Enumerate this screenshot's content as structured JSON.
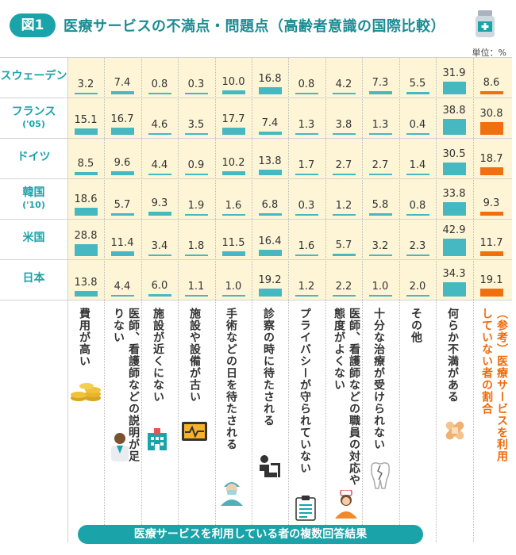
{
  "header": {
    "badge": "図1",
    "title": "医療サービスの不満点・問題点（高齢者意識の国際比較）",
    "unit": "単位：%"
  },
  "footer": {
    "label": "医療サービスを利用している者の複数回答結果"
  },
  "colors": {
    "teal": "#1aa3a9",
    "bar": "#45b8c2",
    "orange": "#f0700f",
    "bg": "#fdf5d6"
  },
  "chart_data": {
    "type": "table",
    "title": "医療サービスの不満点・問題点（高齢者意識の国際比較）",
    "unit": "単位：%",
    "categories": [
      "費用が高い",
      "医師、看護師などの説明が足りない",
      "施設が近くにない",
      "施設や設備が古い",
      "手術などの日を待たされる",
      "診察の時に待たされる",
      "プライバシーが守られていない",
      "医師、看護師などの職員の対応や態度がよくない",
      "十分な治療が受けられない",
      "その他",
      "何らか不満がある",
      "（参考）医療サービスを利用していない者の割合"
    ],
    "series": [
      {
        "name": "スウェーデン",
        "note": "",
        "values": [
          3.2,
          7.4,
          0.8,
          0.3,
          10.0,
          16.8,
          0.8,
          4.2,
          7.3,
          5.5,
          31.9,
          8.6
        ]
      },
      {
        "name": "フランス",
        "note": "('05)",
        "values": [
          15.1,
          16.7,
          4.6,
          3.5,
          17.7,
          7.4,
          1.3,
          3.8,
          1.3,
          0.4,
          38.8,
          30.8
        ]
      },
      {
        "name": "ドイツ",
        "note": "",
        "values": [
          8.5,
          9.6,
          4.4,
          0.9,
          10.2,
          13.8,
          1.7,
          2.7,
          2.7,
          1.4,
          30.5,
          18.7
        ]
      },
      {
        "name": "韓国",
        "note": "('10)",
        "values": [
          18.6,
          5.7,
          9.3,
          1.9,
          1.6,
          6.8,
          0.3,
          1.2,
          5.8,
          0.8,
          33.8,
          9.3
        ]
      },
      {
        "name": "米国",
        "note": "",
        "values": [
          28.8,
          11.4,
          3.4,
          1.8,
          11.5,
          16.4,
          1.6,
          5.7,
          3.2,
          2.3,
          42.9,
          11.7
        ]
      },
      {
        "name": "日本",
        "note": "",
        "values": [
          13.8,
          4.4,
          6.0,
          1.1,
          1.0,
          19.2,
          1.2,
          2.2,
          1.0,
          2.0,
          34.3,
          19.1
        ]
      }
    ]
  },
  "icons": [
    "coins-icon",
    "doctor-icon",
    "hospital-icon",
    "monitor-icon",
    "surgeon-icon",
    "waiting-person-icon",
    "clipboard-icon",
    "nurse-icon",
    "broken-tooth-icon",
    "bandage-icon",
    "medicine-bottle-icon"
  ]
}
